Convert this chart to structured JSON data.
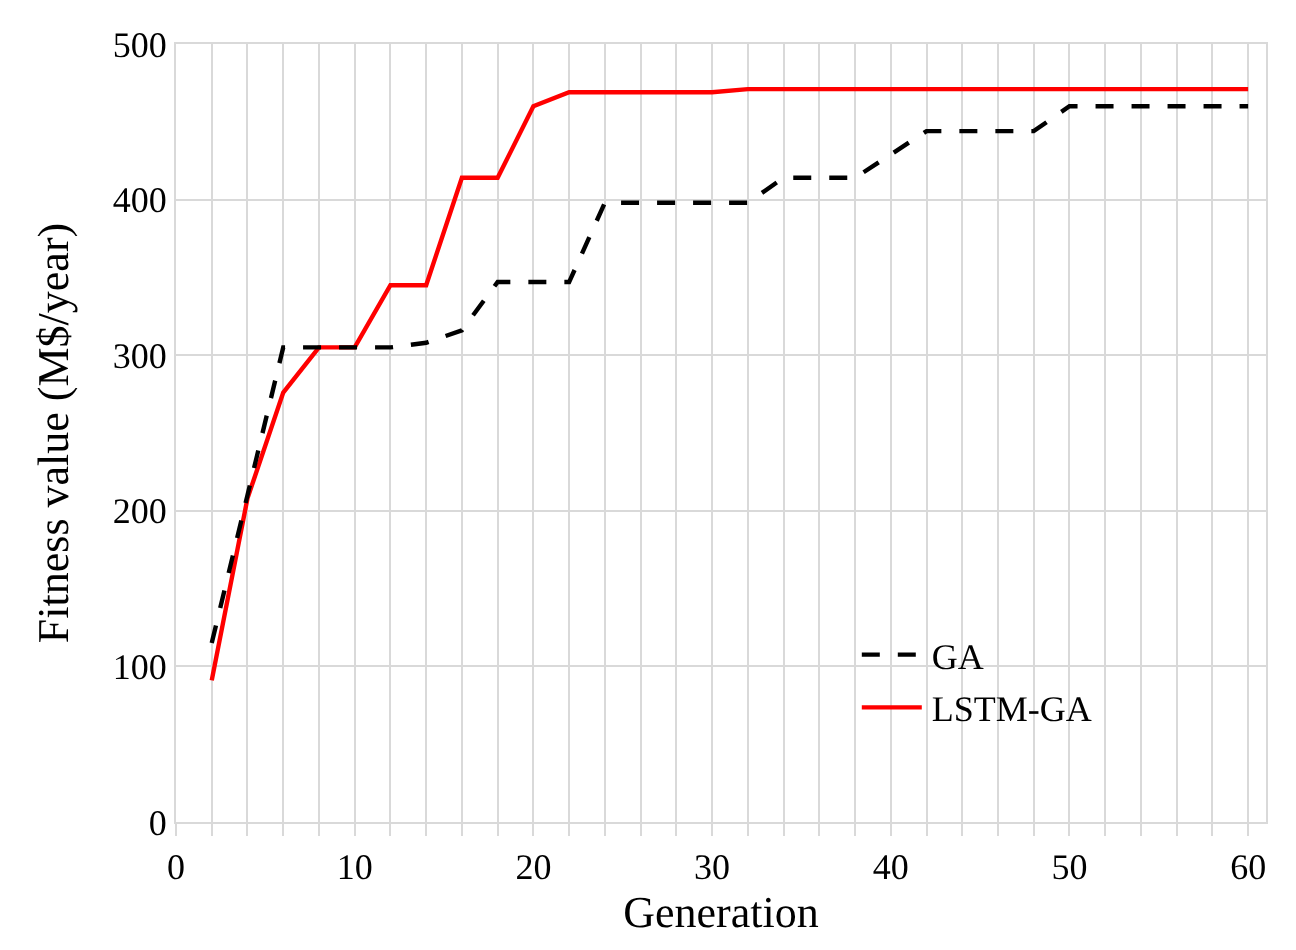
{
  "chart_data": {
    "type": "line",
    "xlabel": "Generation",
    "ylabel": "Fitness value (M$/year)",
    "xlim": [
      0,
      61
    ],
    "xticks": [
      0,
      10,
      20,
      30,
      40,
      50,
      60
    ],
    "ylim": [
      0,
      500
    ],
    "yticks": [
      0,
      100,
      200,
      300,
      400,
      500
    ],
    "grid": true,
    "legend": "bottom right",
    "series": [
      {
        "name": "GA",
        "color": "#000000",
        "line_style": "dashed",
        "x": [
          2,
          4,
          6,
          8,
          10,
          12,
          14,
          16,
          18,
          20,
          22,
          24,
          26,
          28,
          30,
          32,
          34,
          36,
          38,
          40,
          42,
          44,
          46,
          48,
          50,
          52,
          54,
          56,
          58,
          60
        ],
        "values": [
          115,
          210,
          305,
          305,
          305,
          305,
          308,
          316,
          347,
          347,
          347,
          398,
          398,
          398,
          398,
          398,
          414,
          414,
          414,
          429,
          444,
          444,
          444,
          444,
          460,
          460,
          460,
          460,
          460,
          460
        ]
      },
      {
        "name": "LSTM-GA",
        "color": "#ff0000",
        "line_style": "solid",
        "x": [
          2,
          4,
          6,
          8,
          10,
          12,
          14,
          16,
          18,
          20,
          22,
          24,
          26,
          28,
          30,
          32,
          34,
          36,
          38,
          40,
          42,
          44,
          46,
          48,
          50,
          52,
          54,
          56,
          58,
          60
        ],
        "values": [
          91,
          208,
          276,
          305,
          305,
          345,
          345,
          414,
          414,
          460,
          469,
          469,
          469,
          469,
          469,
          471,
          471,
          471,
          471,
          471,
          471,
          471,
          471,
          471,
          471,
          471,
          471,
          471,
          471,
          471
        ]
      }
    ]
  }
}
